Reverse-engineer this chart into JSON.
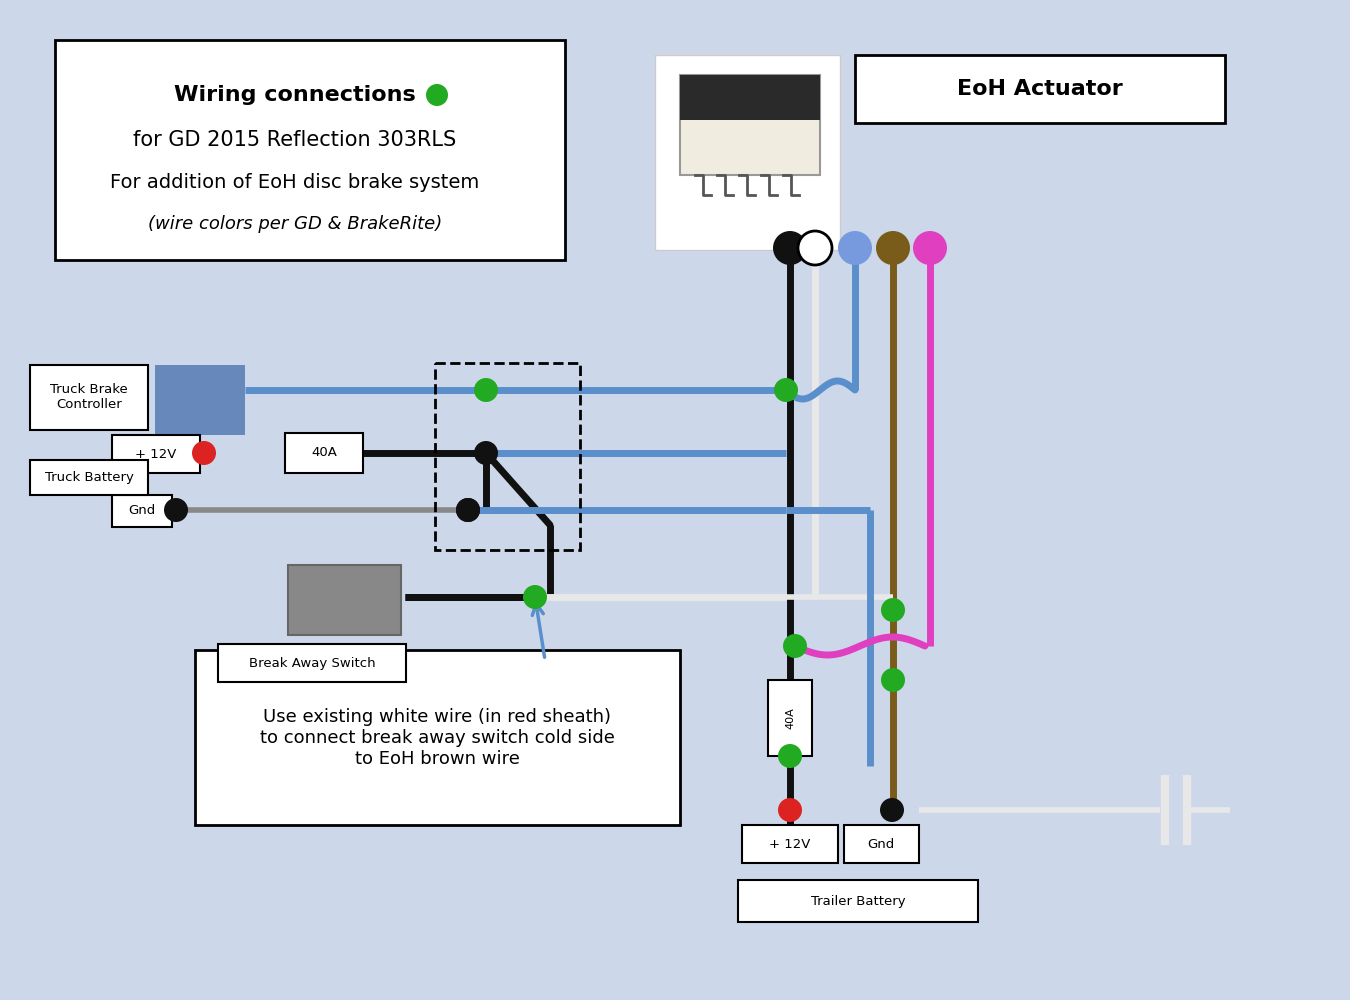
{
  "bg_color": "#ccd8ea",
  "title_lines": [
    "Wiring connections",
    "for GD 2015 Reflection 303RLS",
    "For addition of EoH disc brake system",
    "(wire colors per GD & BrakeRite)"
  ],
  "eoh_label": "EoH Actuator",
  "note_text": "Use existing white wire (in red sheath)\nto connect break away switch cold side\nto EoH brown wire",
  "colors": {
    "black": "#111111",
    "blue": "#5b8fcc",
    "brown": "#7a5c1a",
    "pink": "#e040c0",
    "green": "#22aa22",
    "red": "#dd2222",
    "gray": "#888888",
    "blue_box": "#6688bb",
    "white_wire": "#e8e8e8"
  }
}
